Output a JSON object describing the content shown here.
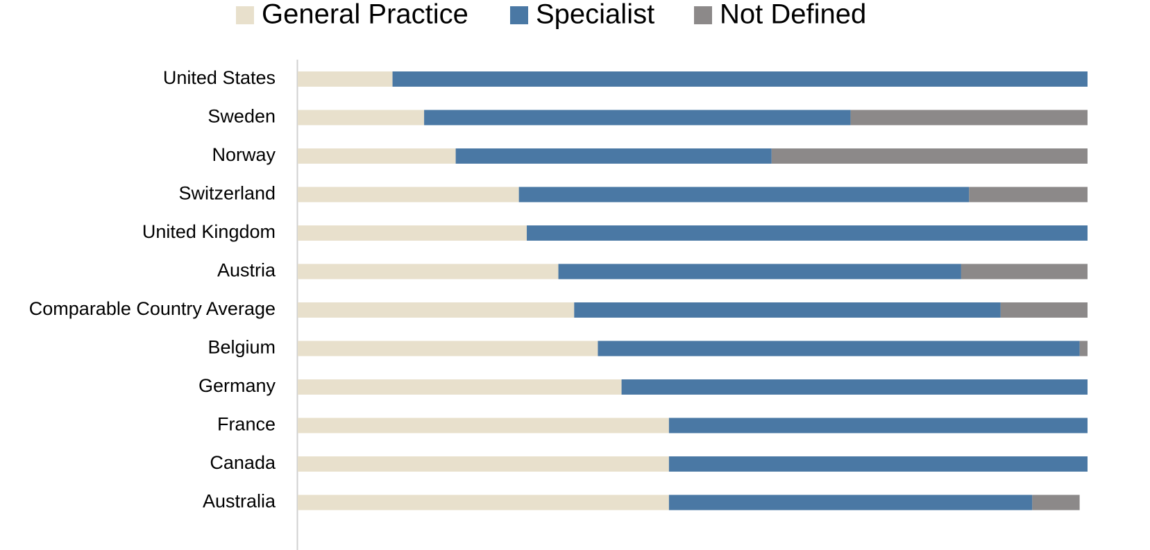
{
  "chart_data": {
    "type": "stacked_bar_horizontal",
    "categories": [
      "United States",
      "Sweden",
      "Norway",
      "Switzerland",
      "United Kingdom",
      "Austria",
      "Comparable Country Average",
      "Belgium",
      "Germany",
      "France",
      "Canada",
      "Australia"
    ],
    "series": [
      {
        "name": "General Practice",
        "color": "#e8e0cc",
        "values": [
          12,
          16,
          20,
          28,
          29,
          33,
          35,
          38,
          41,
          47,
          47,
          47
        ]
      },
      {
        "name": "Specialist",
        "color": "#4a78a4",
        "values": [
          88,
          54,
          40,
          57,
          71,
          51,
          54,
          61,
          59,
          53,
          53,
          46
        ]
      },
      {
        "name": "Not Defined",
        "color": "#8c8989",
        "values": [
          0,
          30,
          40,
          15,
          0,
          16,
          11,
          1,
          0,
          0,
          0,
          6
        ]
      }
    ],
    "xlim": [
      0,
      100
    ],
    "legend": "top"
  }
}
